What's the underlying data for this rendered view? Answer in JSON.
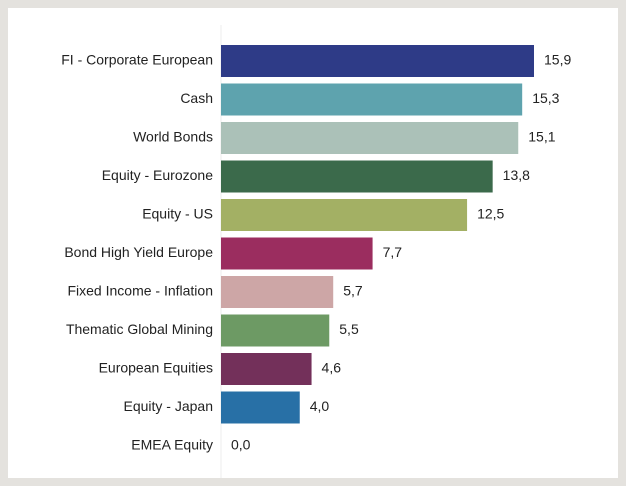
{
  "chart_data": {
    "type": "bar",
    "orientation": "horizontal",
    "categories": [
      "FI - Corporate European",
      "Cash",
      "World Bonds",
      "Equity - Eurozone",
      "Equity - US",
      "Bond High Yield Europe",
      "Fixed Income - Inflation",
      "Thematic Global Mining",
      "European Equities",
      "Equity - Japan",
      "EMEA Equity"
    ],
    "values": [
      15.9,
      15.3,
      15.1,
      13.8,
      12.5,
      7.7,
      5.7,
      5.5,
      4.6,
      4.0,
      0.0
    ],
    "value_labels": [
      "15,9",
      "15,3",
      "15,1",
      "13,8",
      "12,5",
      "7,7",
      "5,7",
      "5,5",
      "4,6",
      "4,0",
      "0,0"
    ],
    "colors": [
      "#2e3b87",
      "#5ea3ae",
      "#abc1b8",
      "#3b6a4b",
      "#a3b064",
      "#9b2d5f",
      "#cda6a6",
      "#6d9a64",
      "#73305a",
      "#2870a6",
      "#888888"
    ]
  }
}
